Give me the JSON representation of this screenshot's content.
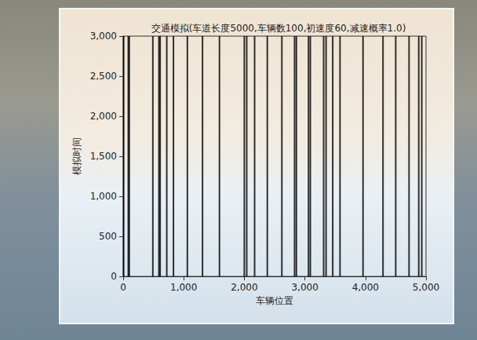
{
  "chart_data": {
    "type": "line",
    "title": "交通模拟(车道长度5000,车辆数100,初速度60,减速概率1.0)",
    "xlabel": "车辆位置",
    "ylabel": "模拟时间",
    "color": "#000000",
    "times": [
      0,
      3000
    ],
    "positions": [
      8,
      85,
      100,
      490,
      590,
      610,
      720,
      830,
      1060,
      1310,
      1590,
      2000,
      2040,
      2170,
      2380,
      2620,
      2830,
      2860,
      3060,
      3090,
      3310,
      3350,
      3460,
      3580,
      3960,
      4290,
      4500,
      4720,
      4880,
      4930
    ],
    "xlim": [
      0,
      5000
    ],
    "xticks": [
      0,
      1000,
      2000,
      3000,
      4000,
      5000
    ],
    "ylim": [
      0,
      3000
    ],
    "yticks": [
      0,
      500,
      1000,
      1500,
      2000,
      2500,
      3000
    ],
    "grid": false
  }
}
